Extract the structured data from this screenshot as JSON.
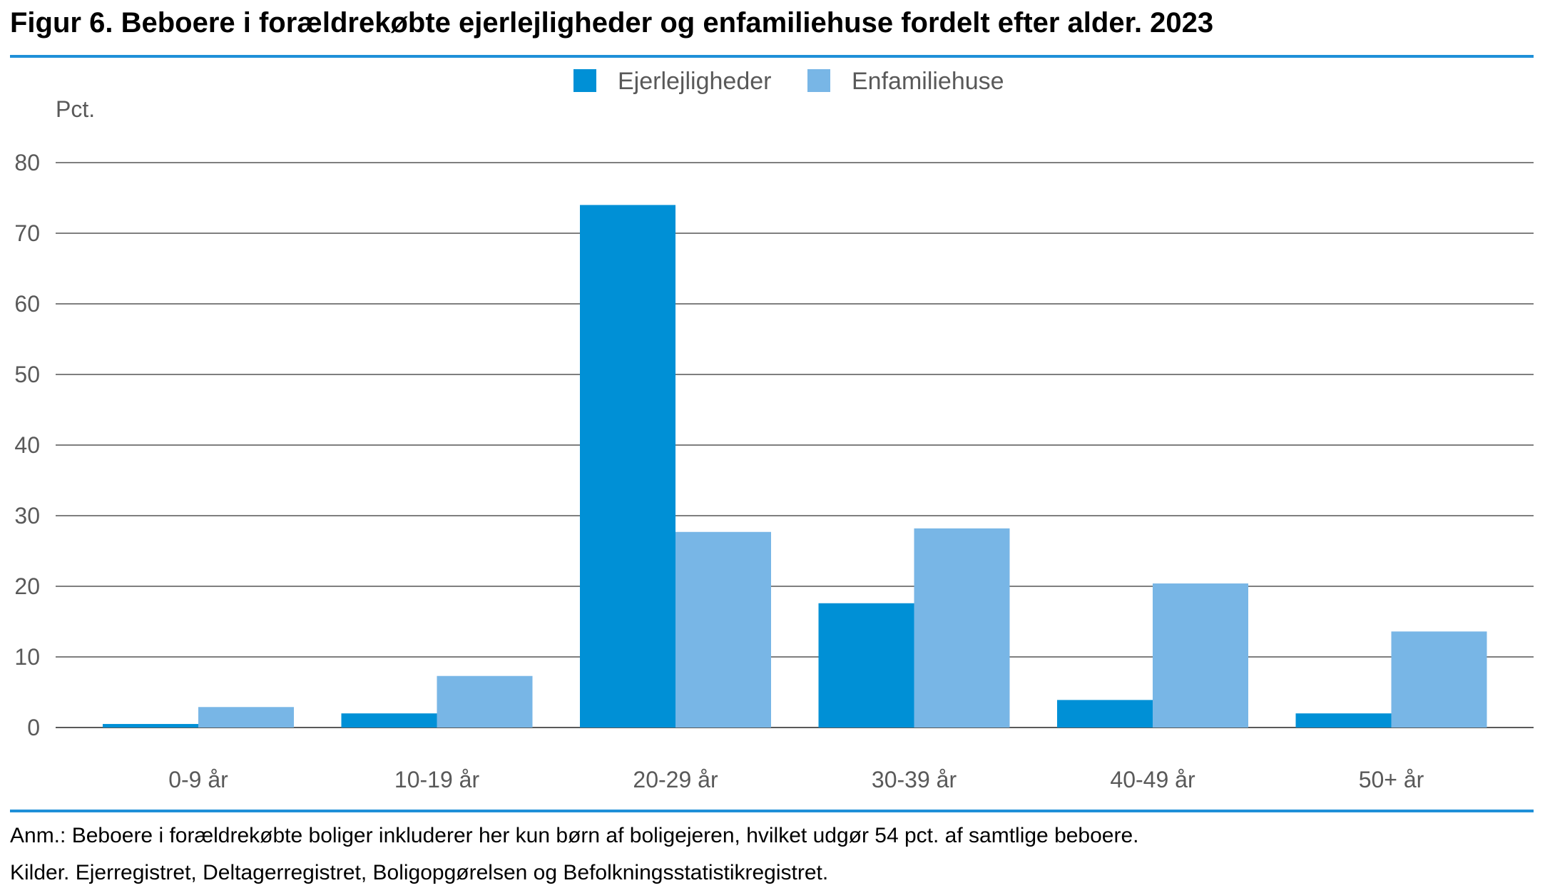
{
  "figure": {
    "title": "Figur 6. Beboere i forældrekøbte ejerlejligheder og enfamiliehuse fordelt efter alder. 2023",
    "note": "Anm.: Beboere i forældrekøbte boliger inkluderer her kun børn af boligejeren, hvilket udgør 54 pct. af samtlige beboere.",
    "sources": "Kilder. Ejerregistret, Deltagerregistret, Boligopgørelsen og Befolkningsstatistikregistret."
  },
  "chart_data": {
    "type": "bar",
    "title": "Figur 6. Beboere i forældrekøbte ejerlejligheder og enfamiliehuse fordelt efter alder. 2023",
    "xlabel": "",
    "ylabel": "Pct.",
    "ylim": [
      0,
      80
    ],
    "yticks": [
      0,
      10,
      20,
      30,
      40,
      50,
      60,
      70,
      80
    ],
    "grid": true,
    "legend_position": "top-center",
    "categories": [
      "0-9 år",
      "10-19 år",
      "20-29 år",
      "30-39 år",
      "40-49 år",
      "50+ år"
    ],
    "series": [
      {
        "name": "Ejerlejligheder",
        "color": "#0090d6",
        "values": [
          0.5,
          2.0,
          74.0,
          17.6,
          3.9,
          2.0
        ]
      },
      {
        "name": "Enfamiliehuse",
        "color": "#78b6e6",
        "values": [
          2.9,
          7.3,
          27.7,
          28.2,
          20.4,
          13.6
        ]
      }
    ]
  }
}
